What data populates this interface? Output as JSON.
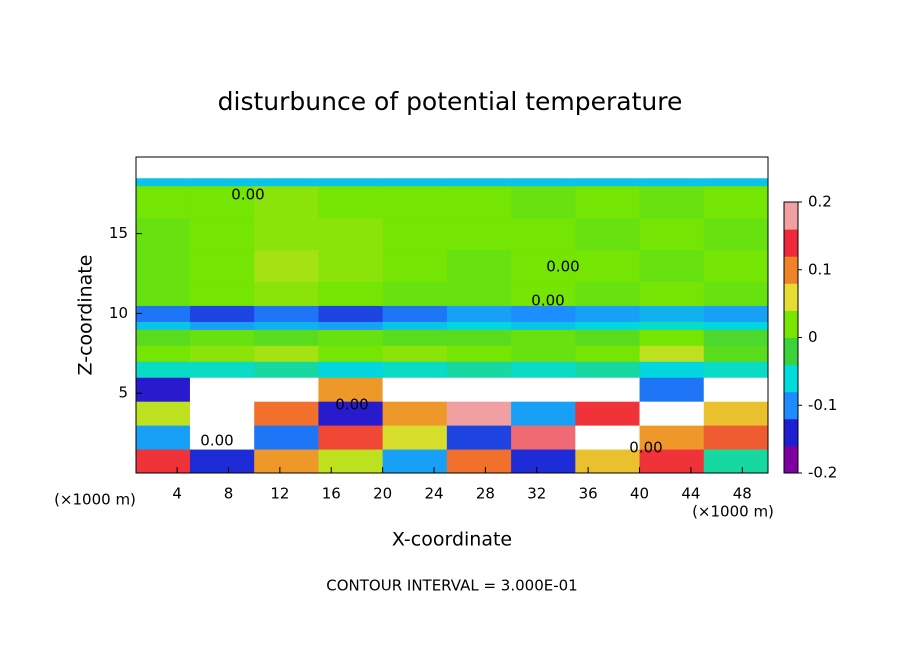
{
  "chart_data": {
    "type": "contour",
    "title": "disturbunce of potential temperature",
    "xlabel": "X-coordinate",
    "ylabel": "Z-coordinate",
    "x_unit": "(×1000 m)",
    "y_unit": "(×1000 m)",
    "footer": "CONTOUR INTERVAL = 3.000E-01",
    "xlim": [
      0.8,
      50
    ],
    "ylim": [
      0,
      19.8
    ],
    "xticks": [
      4,
      8,
      12,
      16,
      20,
      24,
      28,
      32,
      36,
      40,
      44,
      48
    ],
    "yticks": [
      5,
      10,
      15
    ],
    "x_edges": [
      0.8,
      5,
      10,
      15,
      20,
      25,
      30,
      35,
      40,
      45,
      50
    ],
    "y_edges": [
      0,
      1.5,
      3,
      4.5,
      6,
      7,
      8,
      9,
      9.5,
      10.5,
      12,
      14,
      16,
      18,
      18.5,
      19.8
    ],
    "z": [
      [
        0.15,
        -0.15,
        0.1,
        0.05,
        -0.1,
        0.12,
        -0.15,
        0.08,
        0.15,
        -0.05
      ],
      [
        -0.1,
        0.25,
        -0.12,
        0.14,
        0.06,
        -0.14,
        0.18,
        -0.25,
        0.1,
        0.13
      ],
      [
        0.05,
        -0.25,
        0.12,
        -0.16,
        0.1,
        0.2,
        -0.1,
        0.15,
        -0.25,
        0.08
      ],
      [
        -0.16,
        0.25,
        -0.25,
        0.1,
        -0.25,
        0.25,
        -0.25,
        0.25,
        -0.12,
        -0.25
      ],
      [
        -0.06,
        -0.06,
        -0.05,
        -0.07,
        -0.06,
        -0.05,
        -0.06,
        -0.05,
        -0.07,
        -0.06
      ],
      [
        0.02,
        0.03,
        0.04,
        0.02,
        0.03,
        0.02,
        0.01,
        0.02,
        0.05,
        0.0
      ],
      [
        0.0,
        0.01,
        0.0,
        0.01,
        0.0,
        0.0,
        0.01,
        0.0,
        0.02,
        -0.01
      ],
      [
        -0.08,
        -0.1,
        -0.09,
        -0.1,
        -0.08,
        -0.07,
        -0.08,
        -0.07,
        -0.06,
        -0.07
      ],
      [
        -0.12,
        -0.14,
        -0.12,
        -0.14,
        -0.12,
        -0.1,
        -0.11,
        -0.1,
        -0.09,
        -0.1
      ],
      [
        0.01,
        0.02,
        0.03,
        0.02,
        0.01,
        0.01,
        0.02,
        0.01,
        0.02,
        0.01
      ],
      [
        0.01,
        0.02,
        0.04,
        0.03,
        0.02,
        0.01,
        0.02,
        0.02,
        0.01,
        0.02
      ],
      [
        0.01,
        0.02,
        0.03,
        0.03,
        0.02,
        0.02,
        0.02,
        0.01,
        0.02,
        0.01
      ],
      [
        0.02,
        0.02,
        0.03,
        0.02,
        0.02,
        0.02,
        0.01,
        0.02,
        0.01,
        0.02
      ],
      [
        -0.08,
        -0.08,
        -0.08,
        -0.08,
        -0.08,
        -0.08,
        -0.08,
        -0.08,
        -0.08,
        -0.08
      ],
      [
        0.3,
        0.3,
        0.3,
        0.3,
        0.3,
        0.3,
        0.3,
        0.3,
        0.3,
        0.3
      ]
    ],
    "zlim": [
      -0.2,
      0.2
    ],
    "zticks": [
      0.2,
      0.1,
      0,
      -0.1,
      -0.2
    ],
    "colormap": [
      "#7f00a0",
      "#1e1ed2",
      "#1e8cff",
      "#00dcdc",
      "#3cd23c",
      "#78e600",
      "#e6dc32",
      "#f08228",
      "#f0283c",
      "#f0a0a0"
    ],
    "contour_labels": [
      "0.00",
      "0.00",
      "0.00",
      "0.00",
      "0.00",
      "0.00"
    ]
  }
}
